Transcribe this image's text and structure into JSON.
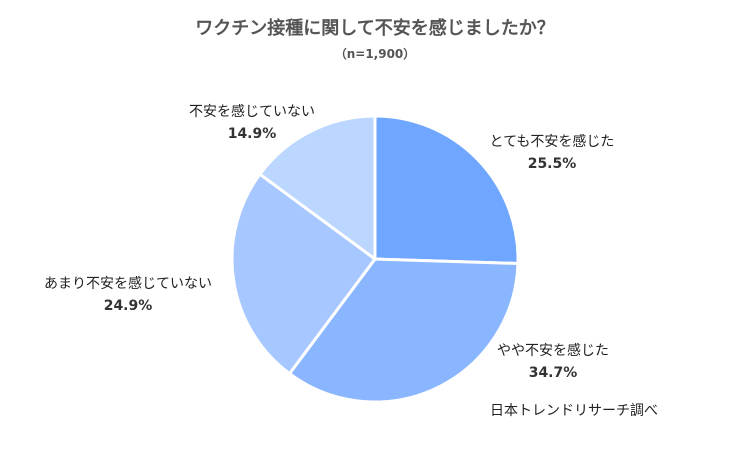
{
  "chart_data": {
    "type": "pie",
    "title": "ワクチン接種に関して不安を感じましたか？",
    "subtitle": "（n=1,900）",
    "start_angle_deg": 0,
    "direction": "clockwise",
    "slices": [
      {
        "label": "とても不安を感じた",
        "value": 25.5,
        "value_label": "25.5%",
        "color": "#6fa6ff"
      },
      {
        "label": "やや不安を感じた",
        "value": 34.7,
        "value_label": "34.7%",
        "color": "#8ab6ff"
      },
      {
        "label": "あまり不安を感じていない",
        "value": 24.9,
        "value_label": "24.9%",
        "color": "#a6c7ff"
      },
      {
        "label": "不安を感じていない",
        "value": 14.9,
        "value_label": "14.9%",
        "color": "#bcd7ff"
      }
    ],
    "source": "日本トレンドリサーチ調べ"
  }
}
